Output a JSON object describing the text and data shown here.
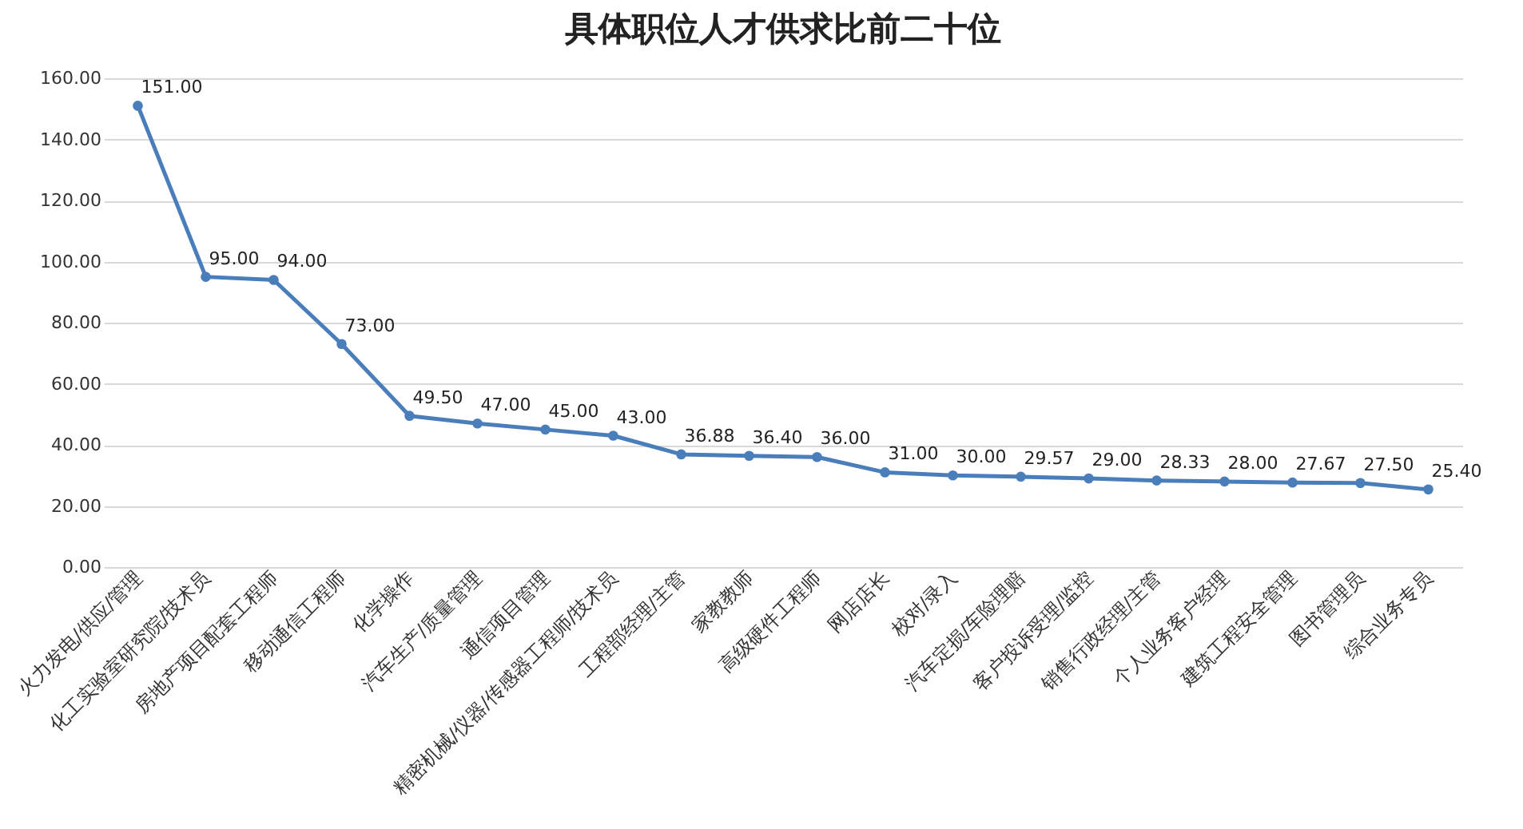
{
  "chart_data": {
    "type": "line",
    "title": "具体职位人才供求比前二十位",
    "categories": [
      "火力发电/供应/管理",
      "化工实验室研究院/技术员",
      "房地产项目配套工程师",
      "移动通信工程师",
      "化学操作",
      "汽车生产/质量管理",
      "通信项目管理",
      "精密机械/仪器/传感器工程师/技术员",
      "工程部经理/主管",
      "家教教师",
      "高级硬件工程师",
      "网店店长",
      "校对/录入",
      "汽车定损/车险理赔",
      "客户投诉受理/监控",
      "销售行政经理/主管",
      "个人业务客户经理",
      "建筑工程安全管理",
      "图书管理员",
      "综合业务专员"
    ],
    "series": [
      {
        "color": "#4a7ebb",
        "values": [
          151,
          95,
          94,
          73,
          49.5,
          47,
          45,
          43,
          36.88,
          36.4,
          36,
          31,
          30,
          29.57,
          29,
          28.33,
          28,
          27.67,
          27.5,
          25.4
        ],
        "value_labels": [
          "151.00",
          "95.00",
          "94.00",
          "73.00",
          "49.50",
          "47.00",
          "45.00",
          "43.00",
          "36.88",
          "36.40",
          "36.00",
          "31.00",
          "30.00",
          "29.57",
          "29.00",
          "28.33",
          "28.00",
          "27.67",
          "27.50",
          "25.40"
        ]
      }
    ],
    "ylim": [
      0,
      160
    ],
    "yticks": [
      {
        "value": 0,
        "label": "0.00"
      },
      {
        "value": 20,
        "label": "20.00"
      },
      {
        "value": 40,
        "label": "40.00"
      },
      {
        "value": 60,
        "label": "60.00"
      },
      {
        "value": 80,
        "label": "80.00"
      },
      {
        "value": 100,
        "label": "100.00"
      },
      {
        "value": 120,
        "label": "120.00"
      },
      {
        "value": 140,
        "label": "140.00"
      },
      {
        "value": 160,
        "label": "160.00"
      }
    ],
    "grid": "y",
    "marker": "circle",
    "line_style": "solid"
  }
}
